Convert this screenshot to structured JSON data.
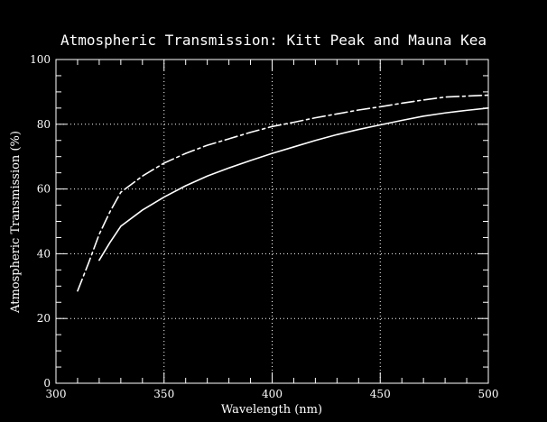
{
  "chart_data": {
    "type": "line",
    "title": "Atmospheric Transmission: Kitt Peak and Mauna Kea",
    "xlabel": "Wavelength (nm)",
    "ylabel": "Atmospheric Transmission (%)",
    "xlim": [
      300,
      500
    ],
    "ylim": [
      0,
      100
    ],
    "xticks": [
      300,
      350,
      400,
      450,
      500
    ],
    "yticks": [
      0,
      20,
      40,
      60,
      80,
      100
    ],
    "grid": true,
    "series": [
      {
        "style": "solid",
        "color": "#ffffff",
        "x": [
          320,
          325,
          330,
          340,
          350,
          360,
          370,
          380,
          390,
          400,
          410,
          420,
          430,
          440,
          450,
          460,
          470,
          480,
          490,
          500
        ],
        "y": [
          38,
          43.5,
          48.5,
          53.5,
          57.5,
          61,
          64,
          66.5,
          68.8,
          71,
          73,
          75,
          76.8,
          78.4,
          79.8,
          81.2,
          82.5,
          83.5,
          84.3,
          85
        ]
      },
      {
        "style": "dash-dot",
        "color": "#ffffff",
        "x": [
          310,
          315,
          320,
          325,
          330,
          340,
          350,
          360,
          370,
          380,
          390,
          400,
          410,
          420,
          430,
          440,
          450,
          460,
          470,
          480,
          490,
          500
        ],
        "y": [
          28.5,
          37,
          46,
          53,
          59,
          64,
          68,
          71,
          73.5,
          75.5,
          77.5,
          79.3,
          80.6,
          82,
          83.2,
          84.4,
          85.4,
          86.5,
          87.5,
          88.4,
          88.7,
          89
        ]
      }
    ]
  }
}
